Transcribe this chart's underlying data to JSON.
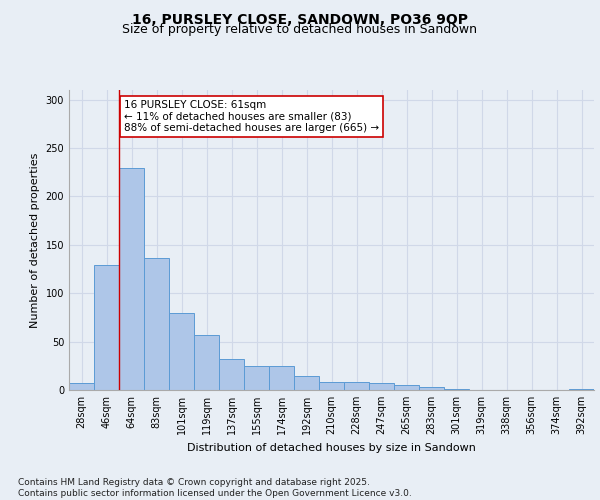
{
  "title_line1": "16, PURSLEY CLOSE, SANDOWN, PO36 9QP",
  "title_line2": "Size of property relative to detached houses in Sandown",
  "xlabel": "Distribution of detached houses by size in Sandown",
  "ylabel": "Number of detached properties",
  "categories": [
    "28sqm",
    "46sqm",
    "64sqm",
    "83sqm",
    "101sqm",
    "119sqm",
    "137sqm",
    "155sqm",
    "174sqm",
    "192sqm",
    "210sqm",
    "228sqm",
    "247sqm",
    "265sqm",
    "283sqm",
    "301sqm",
    "319sqm",
    "338sqm",
    "356sqm",
    "374sqm",
    "392sqm"
  ],
  "values": [
    7,
    129,
    229,
    136,
    80,
    57,
    32,
    25,
    25,
    14,
    8,
    8,
    7,
    5,
    3,
    1,
    0,
    0,
    0,
    0,
    1
  ],
  "bar_color": "#aec6e8",
  "bar_edge_color": "#5b9bd5",
  "grid_color": "#d0d8e8",
  "background_color": "#e8eef5",
  "annotation_text": "16 PURSLEY CLOSE: 61sqm\n← 11% of detached houses are smaller (83)\n88% of semi-detached houses are larger (665) →",
  "annotation_box_color": "#ffffff",
  "annotation_box_edge": "#cc0000",
  "vline_color": "#cc0000",
  "ylim": [
    0,
    310
  ],
  "yticks": [
    0,
    50,
    100,
    150,
    200,
    250,
    300
  ],
  "footnote": "Contains HM Land Registry data © Crown copyright and database right 2025.\nContains public sector information licensed under the Open Government Licence v3.0.",
  "title_fontsize": 10,
  "subtitle_fontsize": 9,
  "axis_label_fontsize": 8,
  "tick_fontsize": 7,
  "annotation_fontsize": 7.5,
  "footnote_fontsize": 6.5
}
